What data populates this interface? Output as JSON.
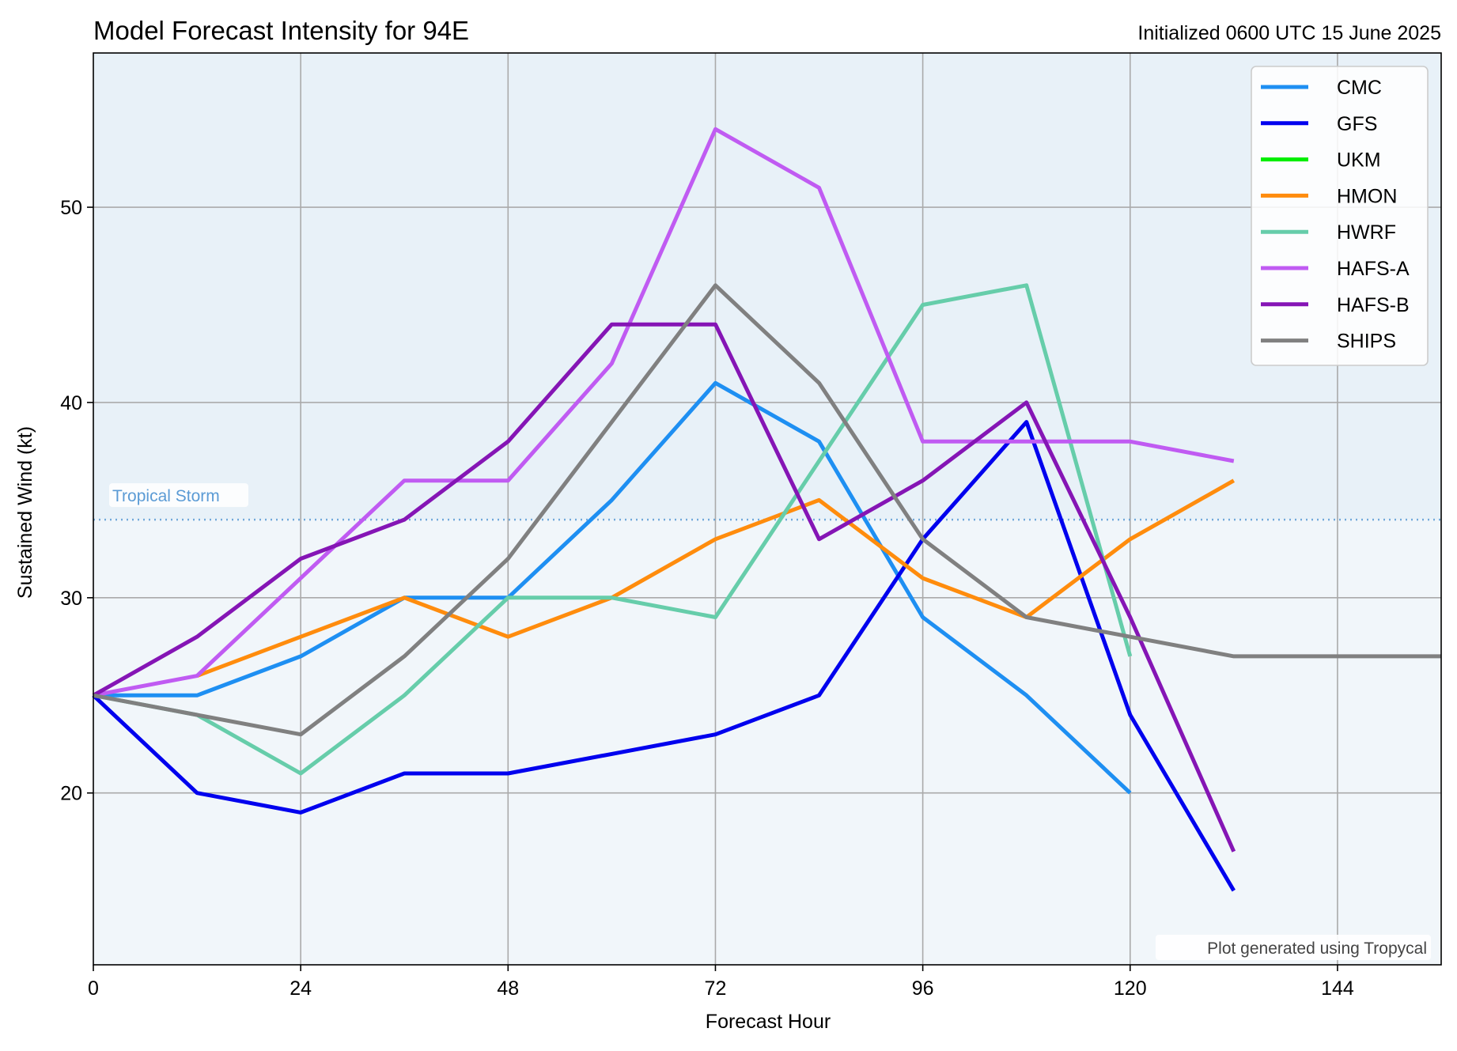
{
  "title": "Model Forecast Intensity for 94E",
  "subtitle": "Initialized 0600 UTC 15 June 2025",
  "credit": "Plot generated using Tropycal",
  "chart_data": {
    "type": "line",
    "xlabel": "Forecast Hour",
    "ylabel": "Sustained Wind (kt)",
    "xlim": [
      0,
      156
    ],
    "ylim": [
      11.2,
      57.9
    ],
    "xticks": [
      "0",
      "24",
      "48",
      "72",
      "96",
      "120",
      "144"
    ],
    "yticks": [
      "20",
      "30",
      "40",
      "50"
    ],
    "grid": true,
    "legend_position": "top-right",
    "threshold": {
      "value": 34,
      "label": "Tropical Storm",
      "color": "#5b9bd5"
    },
    "series": [
      {
        "name": "CMC",
        "color": "#1e8ff2",
        "x": [
          0,
          12,
          24,
          36,
          48,
          60,
          72,
          84,
          96,
          108,
          120
        ],
        "y": [
          25,
          25,
          27,
          30,
          30,
          35,
          41,
          38,
          29,
          25,
          20
        ]
      },
      {
        "name": "GFS",
        "color": "#0000ee",
        "x": [
          0,
          12,
          24,
          36,
          48,
          60,
          72,
          84,
          96,
          108,
          120,
          132
        ],
        "y": [
          25,
          20,
          19,
          21,
          21,
          22,
          23,
          25,
          33,
          39,
          24,
          15
        ]
      },
      {
        "name": "UKM",
        "color": "#00ee00",
        "x": [],
        "y": []
      },
      {
        "name": "HMON",
        "color": "#ff8c0d",
        "x": [
          12,
          24,
          36,
          48,
          60,
          72,
          84,
          96,
          108,
          120,
          132
        ],
        "y": [
          26,
          28,
          30,
          28,
          30,
          33,
          35,
          31,
          29,
          33,
          36
        ]
      },
      {
        "name": "HWRF",
        "color": "#66cdaa",
        "x": [
          0,
          12,
          24,
          36,
          48,
          60,
          72,
          84,
          96,
          108,
          120
        ],
        "y": [
          25,
          24,
          21,
          25,
          30,
          30,
          29,
          37,
          45,
          46,
          27
        ]
      },
      {
        "name": "HAFS-A",
        "color": "#c05bf2",
        "x": [
          0,
          12,
          24,
          36,
          48,
          60,
          72,
          84,
          96,
          108,
          120,
          132
        ],
        "y": [
          25,
          26,
          31,
          36,
          36,
          42,
          54,
          51,
          38,
          38,
          38,
          37
        ]
      },
      {
        "name": "HAFS-B",
        "color": "#8515b5",
        "x": [
          0,
          12,
          24,
          36,
          48,
          60,
          72,
          84,
          96,
          108,
          120,
          132
        ],
        "y": [
          25,
          28,
          32,
          34,
          38,
          44,
          44,
          33,
          36,
          40,
          29,
          17
        ]
      },
      {
        "name": "SHIPS",
        "color": "#808080",
        "x": [
          0,
          12,
          24,
          36,
          48,
          60,
          72,
          84,
          96,
          108,
          120,
          132,
          144,
          156
        ],
        "y": [
          25,
          24,
          23,
          27,
          32,
          39,
          46,
          41,
          33,
          29,
          28,
          27,
          27,
          27
        ]
      }
    ]
  }
}
